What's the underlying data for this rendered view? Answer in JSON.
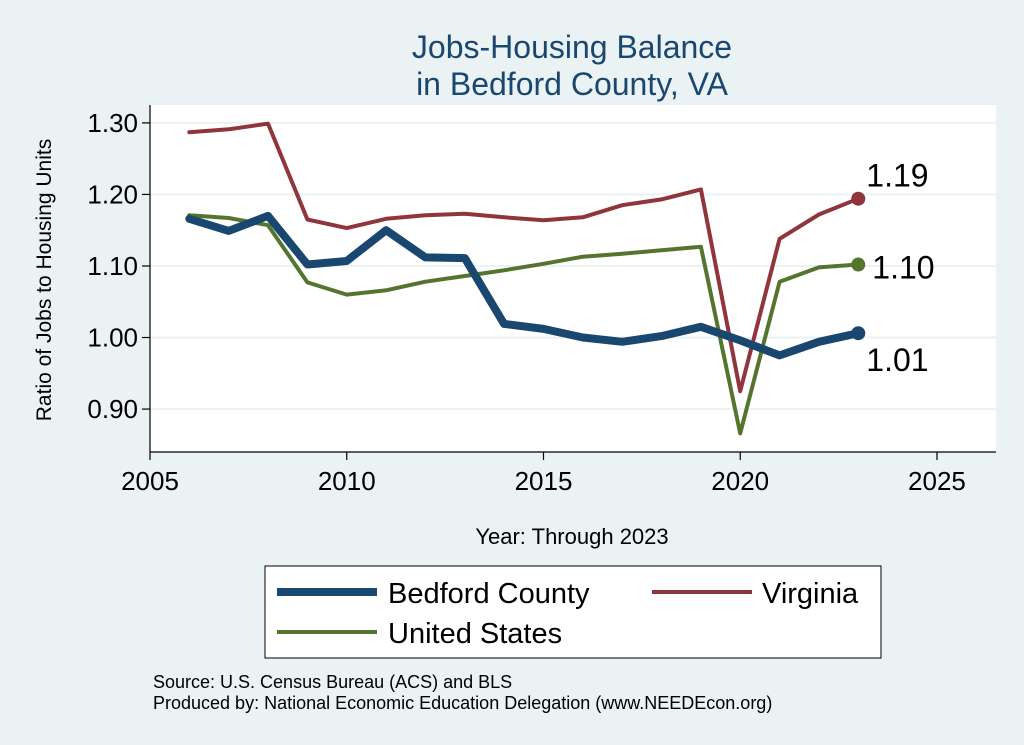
{
  "chart_data": {
    "type": "line",
    "title": [
      "Jobs-Housing Balance",
      "in Bedford County, VA"
    ],
    "xlabel": "Year: Through 2023",
    "ylabel": "Ratio of Jobs to Housing Units",
    "xlim": [
      2005,
      2026.5
    ],
    "ylim": [
      0.84,
      1.325
    ],
    "xticks": [
      2005,
      2010,
      2015,
      2020,
      2025
    ],
    "yticks": [
      0.9,
      1.0,
      1.1,
      1.2,
      1.3
    ],
    "ytick_labels": [
      "0.90",
      "1.00",
      "1.10",
      "1.20",
      "1.30"
    ],
    "grid": "horizontal",
    "x": [
      2006,
      2007,
      2008,
      2009,
      2010,
      2011,
      2012,
      2013,
      2014,
      2015,
      2016,
      2017,
      2018,
      2019,
      2020,
      2021,
      2022,
      2023
    ],
    "series": [
      {
        "name": "Bedford County",
        "color": "#1a476f",
        "values": [
          1.166,
          1.149,
          1.17,
          1.102,
          1.107,
          1.15,
          1.112,
          1.111,
          1.019,
          1.012,
          1.0,
          0.994,
          1.002,
          1.015,
          0.996,
          0.975,
          0.994,
          1.006
        ],
        "end_label": "1.01"
      },
      {
        "name": "Virginia",
        "color": "#90353b",
        "values": [
          1.287,
          1.291,
          1.299,
          1.165,
          1.153,
          1.166,
          1.171,
          1.173,
          1.168,
          1.164,
          1.168,
          1.185,
          1.193,
          1.207,
          0.925,
          1.138,
          1.172,
          1.194
        ],
        "end_label": "1.19"
      },
      {
        "name": "United States",
        "color": "#55752f",
        "values": [
          1.171,
          1.167,
          1.157,
          1.077,
          1.06,
          1.066,
          1.078,
          1.086,
          1.094,
          1.103,
          1.113,
          1.117,
          1.122,
          1.127,
          0.866,
          1.078,
          1.098,
          1.102
        ],
        "end_label": "1.10"
      }
    ],
    "legend": [
      "Bedford County",
      "Virginia",
      "United States"
    ],
    "legend_position": "bottom"
  },
  "footnotes": [
    "Source: U.S. Census Bureau (ACS) and BLS",
    "Produced by: National Economic Education Delegation (www.NEEDEcon.org)"
  ]
}
